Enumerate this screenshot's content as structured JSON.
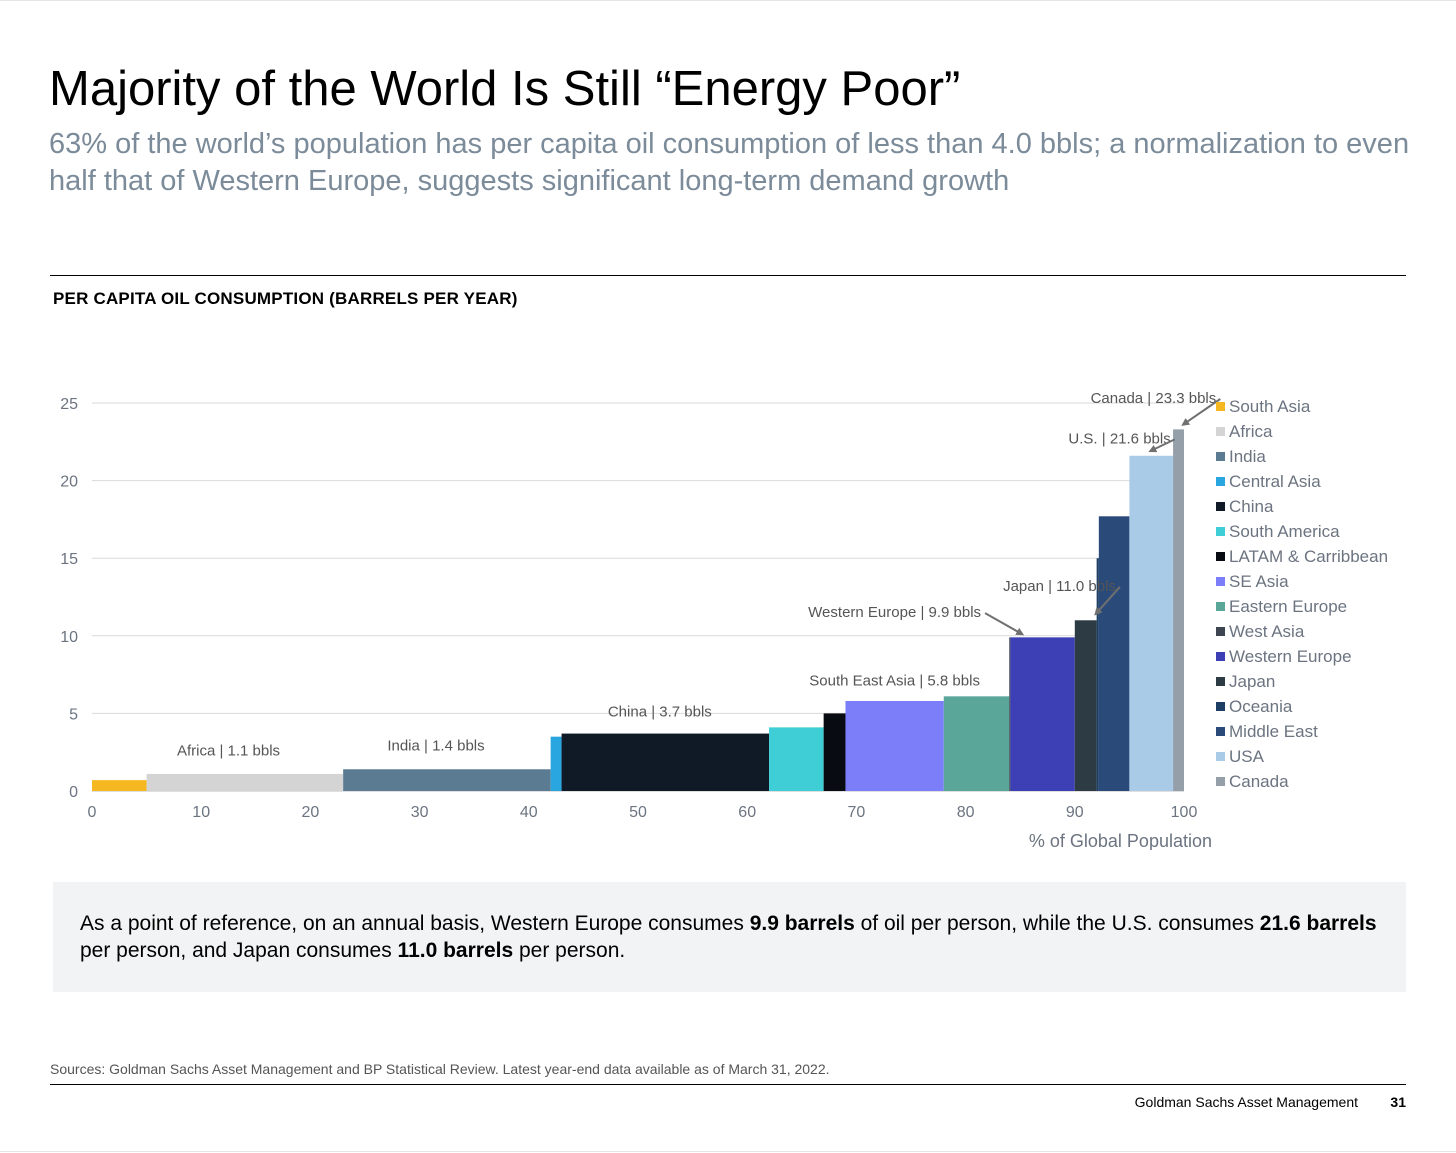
{
  "header": {
    "title": "Majority of the World Is Still “Energy Poor”",
    "subtitle": "63% of the world’s population has per capita oil consumption of less than 4.0 bbls; a normalization to even half that of Western Europe, suggests significant long-term demand growth"
  },
  "chart_data": {
    "type": "bar",
    "variant": "variable-width (marimekko)",
    "title": "PER CAPITA OIL CONSUMPTION (BARRELS PER YEAR)",
    "xlabel": "% of Global Population",
    "ylabel": "",
    "xlim": [
      0,
      100
    ],
    "ylim": [
      0,
      25
    ],
    "xticks": [
      0,
      10,
      20,
      30,
      40,
      50,
      60,
      70,
      80,
      90,
      100
    ],
    "yticks": [
      0,
      5,
      10,
      15,
      20,
      25
    ],
    "grid": "horizontal",
    "legend_position": "right",
    "series": [
      {
        "name": "South Asia",
        "x_start": 0,
        "x_end": 5,
        "value": 0.7,
        "color": "#f5b820"
      },
      {
        "name": "Africa",
        "x_start": 5,
        "x_end": 23,
        "value": 1.1,
        "color": "#d4d4d4"
      },
      {
        "name": "India",
        "x_start": 23,
        "x_end": 42,
        "value": 1.4,
        "color": "#5b7b93"
      },
      {
        "name": "Central Asia",
        "x_start": 42,
        "x_end": 43,
        "value": 3.5,
        "color": "#29a6e0"
      },
      {
        "name": "China",
        "x_start": 43,
        "x_end": 62,
        "value": 3.7,
        "color": "#101a27"
      },
      {
        "name": "South America",
        "x_start": 62,
        "x_end": 67,
        "value": 4.1,
        "color": "#3fced5"
      },
      {
        "name": "LATAM & Carribbean",
        "x_start": 67,
        "x_end": 69,
        "value": 5.0,
        "color": "#080b11"
      },
      {
        "name": "SE Asia",
        "x_start": 69,
        "x_end": 78,
        "value": 5.8,
        "color": "#7b7ef8"
      },
      {
        "name": "Eastern Europe",
        "x_start": 78,
        "x_end": 84,
        "value": 6.1,
        "color": "#5aa699"
      },
      {
        "name": "West Asia",
        "x_start": 84,
        "x_end": 84.1,
        "value": 9.9,
        "color": "#3d4550"
      },
      {
        "name": "Western Europe",
        "x_start": 84.1,
        "x_end": 90,
        "value": 9.9,
        "color": "#3c40b4"
      },
      {
        "name": "Japan",
        "x_start": 90,
        "x_end": 92,
        "value": 11.0,
        "color": "#2d3b45"
      },
      {
        "name": "Oceania",
        "x_start": 92,
        "x_end": 92.2,
        "value": 15.0,
        "color": "#1d3f66"
      },
      {
        "name": "Middle East",
        "x_start": 92.2,
        "x_end": 95,
        "value": 17.7,
        "color": "#2a4a7a"
      },
      {
        "name": "USA",
        "x_start": 95,
        "x_end": 99,
        "value": 21.6,
        "color": "#a9cbe8"
      },
      {
        "name": "Canada",
        "x_start": 99,
        "x_end": 100,
        "value": 23.3,
        "color": "#959fa9"
      }
    ],
    "annotations": [
      {
        "text": "Africa | 1.1 bbls",
        "x": 12.5,
        "y": 2.3,
        "arrow": false
      },
      {
        "text": "India | 1.4 bbls",
        "x": 31.5,
        "y": 2.6,
        "arrow": false
      },
      {
        "text": "China | 3.7 bbls",
        "x": 52,
        "y": 4.8,
        "arrow": false
      },
      {
        "text": "South East Asia | 5.8 bbls",
        "x": 73.5,
        "y": 6.8,
        "arrow": false
      },
      {
        "text": "Western Europe | 9.9 bbls",
        "x": 73.5,
        "y": 11.2,
        "arrow": true,
        "arrow_to": [
          85.2,
          10.1
        ]
      },
      {
        "text": "Japan | 11.0 bbls",
        "x": 88.6,
        "y": 12.9,
        "arrow": true,
        "arrow_to": [
          91.9,
          11.4
        ]
      },
      {
        "text": "U.S. | 21.6 bbls",
        "x": 94.1,
        "y": 22.4,
        "arrow": true,
        "arrow_to": [
          96.9,
          21.9
        ]
      },
      {
        "text": "Canada | 23.3 bbls",
        "x": 97.2,
        "y": 25.0,
        "arrow": true,
        "arrow_to": [
          99.9,
          23.6
        ]
      }
    ]
  },
  "note": {
    "parts": [
      {
        "text": "As a point of reference, on an annual basis, Western Europe consumes ",
        "bold": false
      },
      {
        "text": "9.9 barrels",
        "bold": true
      },
      {
        "text": " of oil per person, while the U.S. consumes ",
        "bold": false
      },
      {
        "text": "21.6 barrels",
        "bold": true
      },
      {
        "text": " per person, and Japan consumes ",
        "bold": false
      },
      {
        "text": "11.0 barrels",
        "bold": true
      },
      {
        "text": " per person.",
        "bold": false
      }
    ]
  },
  "footer": {
    "sources": "Sources: Goldman Sachs Asset Management and BP Statistical Review. Latest year-end data available as of March 31, 2022.",
    "company": "Goldman Sachs Asset Management",
    "page": "31"
  }
}
